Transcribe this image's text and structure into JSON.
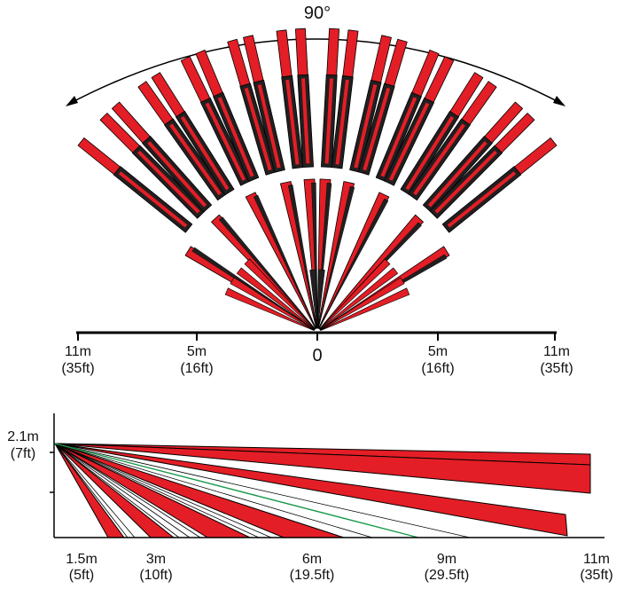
{
  "top_view": {
    "angle_label": "90°",
    "scale_labels": [
      {
        "line1": "11m",
        "line2": "(35ft)"
      },
      {
        "line1": "5m",
        "line2": "(16ft)"
      },
      {
        "line1": "0",
        "line2": ""
      },
      {
        "line1": "5m",
        "line2": "(16ft)"
      },
      {
        "line1": "11m",
        "line2": "(35ft)"
      }
    ]
  },
  "side_view": {
    "height_label": {
      "line1": "2.1m",
      "line2": "(7ft)"
    },
    "distance_labels": [
      {
        "line1": "1.5m",
        "line2": "(5ft)"
      },
      {
        "line1": "3m",
        "line2": "(10ft)"
      },
      {
        "line1": "6m",
        "line2": "(19.5ft)"
      },
      {
        "line1": "9m",
        "line2": "(29.5ft)"
      },
      {
        "line1": "11m",
        "line2": "(35ft)"
      }
    ]
  },
  "colors": {
    "beam_red": "#e41e26",
    "beam_dark": "#231f20",
    "beam_green": "#1a9a4a",
    "outline": "#000000"
  }
}
